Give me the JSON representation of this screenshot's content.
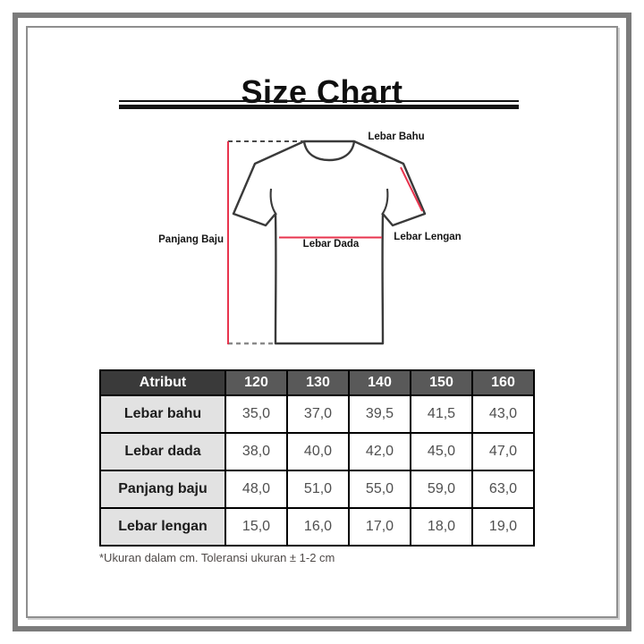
{
  "title": "Size Chart",
  "diagram": {
    "labels": {
      "shoulder": "Lebar Bahu",
      "length": "Panjang Baju",
      "chest": "Lebar Dada",
      "sleeve": "Lebar Lengan"
    },
    "outline_color": "#3a3a3a",
    "measure_line_color": "#e8344e",
    "dash_top_color": "#4a4a4a",
    "dash_bottom_color": "#8a8a8a"
  },
  "table": {
    "headers": [
      "Atribut",
      "120",
      "130",
      "140",
      "150",
      "160"
    ],
    "rows": [
      {
        "label": "Lebar bahu",
        "values": [
          "35,0",
          "37,0",
          "39,5",
          "41,5",
          "43,0"
        ]
      },
      {
        "label": "Lebar dada",
        "values": [
          "38,0",
          "40,0",
          "42,0",
          "45,0",
          "47,0"
        ]
      },
      {
        "label": "Panjang baju",
        "values": [
          "48,0",
          "51,0",
          "55,0",
          "59,0",
          "63,0"
        ]
      },
      {
        "label": "Lebar lengan",
        "values": [
          "15,0",
          "16,0",
          "17,0",
          "18,0",
          "19,0"
        ]
      }
    ],
    "header_bg_attr": "#3a3a3a",
    "header_bg_size": "#595959",
    "label_col_bg": "#e2e2e2"
  },
  "chart_data": {
    "type": "table",
    "title": "Size Chart",
    "columns": [
      "Atribut",
      "120",
      "130",
      "140",
      "150",
      "160"
    ],
    "rows": [
      [
        "Lebar bahu",
        "35,0",
        "37,0",
        "39,5",
        "41,5",
        "43,0"
      ],
      [
        "Lebar dada",
        "38,0",
        "40,0",
        "42,0",
        "45,0",
        "47,0"
      ],
      [
        "Panjang baju",
        "48,0",
        "51,0",
        "55,0",
        "59,0",
        "63,0"
      ],
      [
        "Lebar lengan",
        "15,0",
        "16,0",
        "17,0",
        "18,0",
        "19,0"
      ]
    ]
  },
  "footnote": "*Ukuran dalam cm. Toleransi ukuran ± 1-2 cm"
}
